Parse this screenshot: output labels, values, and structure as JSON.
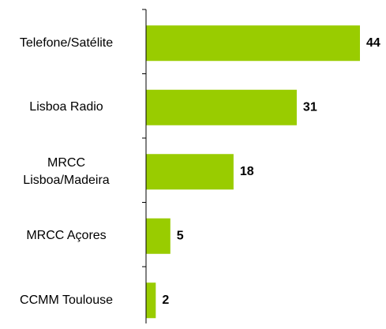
{
  "chart_data": {
    "type": "bar",
    "orientation": "horizontal",
    "categories": [
      "Telefone/Satélite",
      "Lisboa Radio",
      "MRCC\nLisboa/Madeira",
      "MRCC Açores",
      "CCMM Toulouse"
    ],
    "values": [
      44,
      31,
      18,
      5,
      2
    ],
    "color": "#99cc00"
  }
}
